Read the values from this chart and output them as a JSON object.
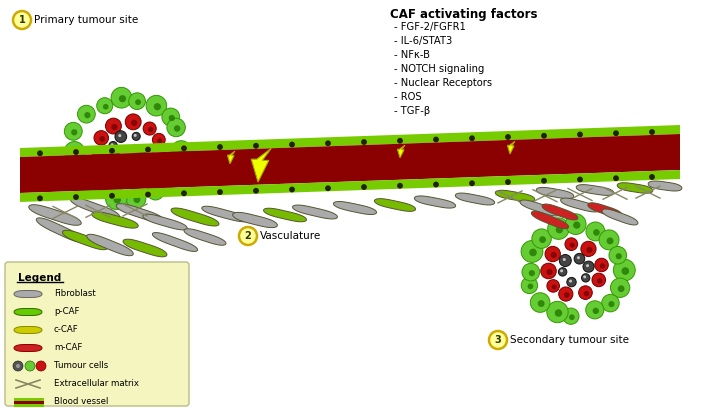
{
  "bg_color": "#ffffff",
  "fig_width": 7.04,
  "fig_height": 4.08,
  "dpi": 100,
  "title_text": "CAF activating factors",
  "caf_factors": [
    "- FGF-2/FGFR1",
    "- IL-6/STAT3",
    "- NFκ-B",
    "- NOTCH signaling",
    "- Nuclear Receptors",
    "- ROS",
    "- TGF-β"
  ],
  "label1": "Primary tumour site",
  "label2": "Vasculature",
  "label3": "Secondary tumour site",
  "legend_title": "Legend",
  "legend_bg": "#f5f5c0",
  "green_cell_color": "#66cc33",
  "green_cell_edge": "#339900",
  "red_tumor_color": "#cc1111",
  "dark_tumor_color": "#444444",
  "vessel_red": "#8b0000",
  "vessel_green": "#77cc00",
  "fibroblast_color": "#aaaaaa",
  "pcaf_color": "#66cc00",
  "ccaf_color": "#cccc00",
  "mcaf_color": "#cc2222",
  "lightning_color": "#eeff00",
  "circle_fill": "#ffff99",
  "circle_edge": "#ccaa00",
  "circle_text": "#333300"
}
